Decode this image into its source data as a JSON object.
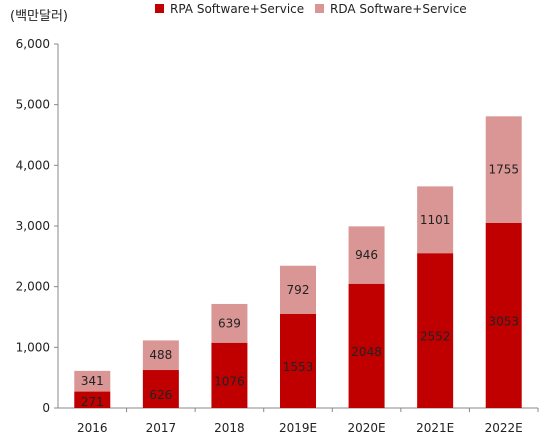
{
  "chart_data": {
    "type": "bar",
    "stacked": true,
    "unit_label": "(백만달러)",
    "categories": [
      "2016",
      "2017",
      "2018",
      "2019E",
      "2020E",
      "2021E",
      "2022E"
    ],
    "series": [
      {
        "name": "RPA Software+Service",
        "color": "#c00000",
        "values": [
          271,
          626,
          1076,
          1553,
          2048,
          2552,
          3053
        ]
      },
      {
        "name": "RDA Software+Service",
        "color": "#d99694",
        "values": [
          341,
          488,
          639,
          792,
          946,
          1101,
          1755
        ]
      }
    ],
    "ylim": [
      0,
      6000
    ],
    "yticks": [
      0,
      1000,
      2000,
      3000,
      4000,
      5000,
      6000
    ],
    "ytick_labels": [
      "0",
      "1,000",
      "2,000",
      "3,000",
      "4,000",
      "5,000",
      "6,000"
    ],
    "grid": false,
    "legend_position": "top"
  }
}
